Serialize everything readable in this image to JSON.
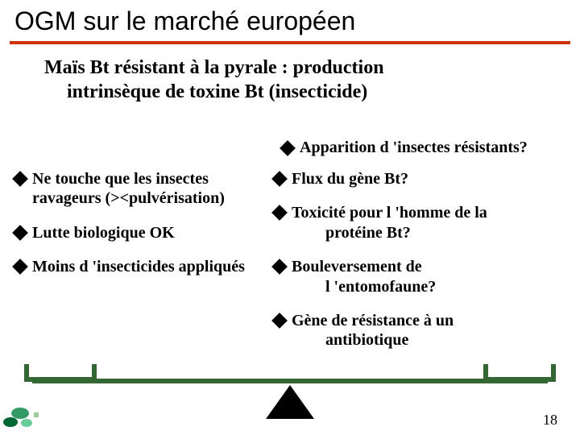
{
  "slide": {
    "title": "OGM sur le marché européen",
    "subtitle_line1": "Maïs Bt résistant à la pyrale : production",
    "subtitle_line2": "intrinsèque de toxine Bt (insecticide)",
    "top_right": "Apparition d 'insectes résistants?",
    "left_bullets": [
      "Ne touche que les insectes ravageurs (><pulvérisation)",
      "Lutte biologique OK",
      " Moins d 'insecticides appliqués"
    ],
    "right_bullets": [
      {
        "text": "Flux du gène Bt?",
        "cont": ""
      },
      {
        "text": "Toxicité pour l 'homme de la",
        "cont": "protéine Bt?"
      },
      {
        "text": "Bouleversement de",
        "cont": "l 'entomofaune?"
      },
      {
        "text": "Gène de résistance à un",
        "cont": "antibiotique"
      }
    ],
    "page_number": "18"
  },
  "style": {
    "rule_color": "#cc3300",
    "scale_color": "#336633",
    "text_color": "#000000",
    "background": "#ffffff",
    "title_font": "Comic Sans MS",
    "body_font": "Times New Roman",
    "title_fontsize": 32,
    "subtitle_fontsize": 24,
    "bullet_fontsize": 20
  }
}
